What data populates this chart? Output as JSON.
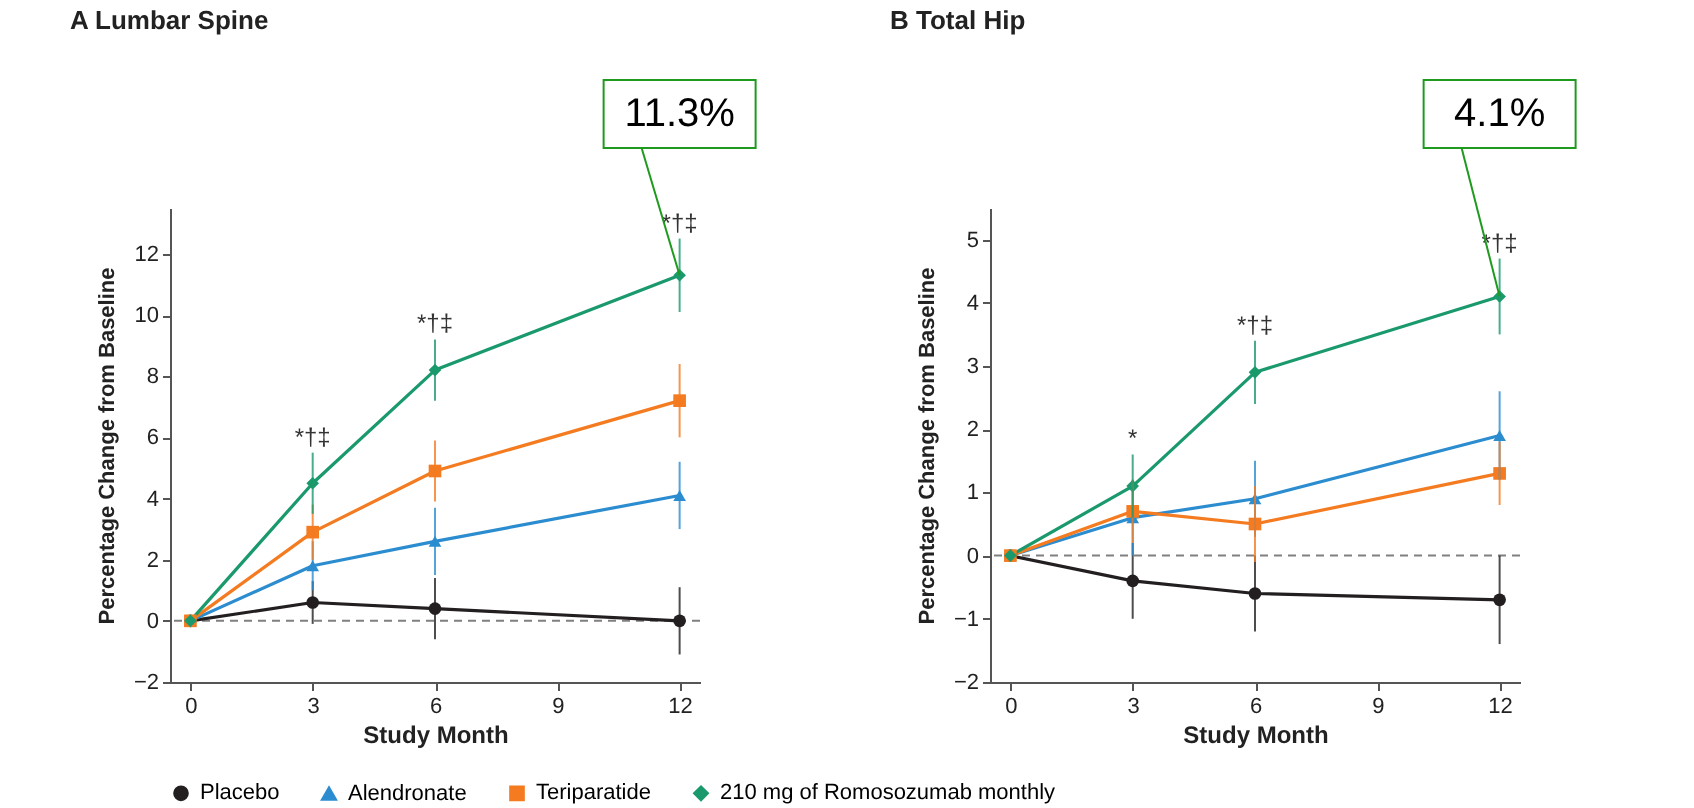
{
  "chart_data": [
    {
      "type": "line",
      "title": "A Lumbar Spine",
      "xlabel": "Study Month",
      "ylabel": "Percentage Change from Baseline",
      "x": [
        0,
        3,
        6,
        12
      ],
      "xlim": [
        -0.5,
        12.5
      ],
      "xticks": [
        0,
        3,
        6,
        9,
        12
      ],
      "ylim": [
        -2,
        13.5
      ],
      "yticks": [
        -2,
        0,
        2,
        4,
        6,
        8,
        10,
        12
      ],
      "legend": "bottom",
      "ref_lines": [
        {
          "axis": "y",
          "value": 0,
          "color": "#808080",
          "line_style": "dashed"
        }
      ],
      "series": [
        {
          "name": "Placebo",
          "color": "#231f20",
          "marker": "circle",
          "values": [
            0,
            0.6,
            0.4,
            0
          ],
          "errors": [
            null,
            0.7,
            1.0,
            1.1
          ]
        },
        {
          "name": "Alendronate",
          "color": "#2b8ccf",
          "marker": "triangle",
          "values": [
            0,
            1.8,
            2.6,
            4.1
          ],
          "errors": [
            null,
            0.8,
            1.1,
            1.1
          ]
        },
        {
          "name": "Teriparatide",
          "color": "#f47b20",
          "marker": "square",
          "values": [
            0,
            2.9,
            4.9,
            7.2
          ],
          "errors": [
            null,
            0.9,
            1.0,
            1.2
          ]
        },
        {
          "name": "210 mg of Romosozumab monthly",
          "color": "#1a9a6c",
          "marker": "diamond",
          "values": [
            0,
            4.5,
            8.2,
            11.3
          ],
          "errors": [
            null,
            1.0,
            1.0,
            1.2
          ]
        }
      ],
      "annotations": [
        {
          "text": "*†‡",
          "x": 3,
          "y": 5.5
        },
        {
          "text": "*†‡",
          "x": 6,
          "y": 9.2
        },
        {
          "text": "*†‡",
          "x": 12,
          "y": 12.5
        },
        {
          "text": "11.3%",
          "x": 12,
          "y": 11.3
        }
      ]
    },
    {
      "type": "line",
      "title": "B Total Hip",
      "xlabel": "Study Month",
      "ylabel": "Percentage Change from Baseline",
      "x": [
        0,
        3,
        6,
        12
      ],
      "xlim": [
        -0.5,
        12.5
      ],
      "xticks": [
        0,
        3,
        6,
        9,
        12
      ],
      "ylim": [
        -2,
        5.5
      ],
      "yticks": [
        -2,
        -1,
        0,
        1,
        2,
        3,
        4,
        5
      ],
      "ref_lines": [
        {
          "axis": "y",
          "value": 0,
          "color": "#808080",
          "line_style": "dashed"
        }
      ],
      "series": [
        {
          "color": "#231f20",
          "marker": "circle",
          "values": [
            0,
            -0.4,
            -0.6,
            -0.7
          ],
          "errors": [
            null,
            0.6,
            0.6,
            0.7
          ]
        },
        {
          "color": "#2b8ccf",
          "marker": "triangle",
          "values": [
            0,
            0.6,
            0.9,
            1.9
          ],
          "errors": [
            null,
            0.6,
            0.6,
            0.7
          ]
        },
        {
          "color": "#f47b20",
          "marker": "square",
          "values": [
            0,
            0.7,
            0.5,
            1.3
          ],
          "errors": [
            null,
            0.5,
            0.6,
            0.5
          ]
        },
        {
          "color": "#1a9a6c",
          "marker": "diamond",
          "values": [
            0,
            1.1,
            2.9,
            4.1
          ],
          "errors": [
            null,
            0.5,
            0.5,
            0.6
          ]
        }
      ],
      "annotations": [
        {
          "text": "*",
          "x": 3,
          "y": 1.6
        },
        {
          "text": "*†‡",
          "x": 6,
          "y": 3.4
        },
        {
          "text": "*†‡",
          "x": 12,
          "y": 4.7
        },
        {
          "text": "4.1%",
          "x": 12,
          "y": 4.1
        }
      ]
    }
  ]
}
